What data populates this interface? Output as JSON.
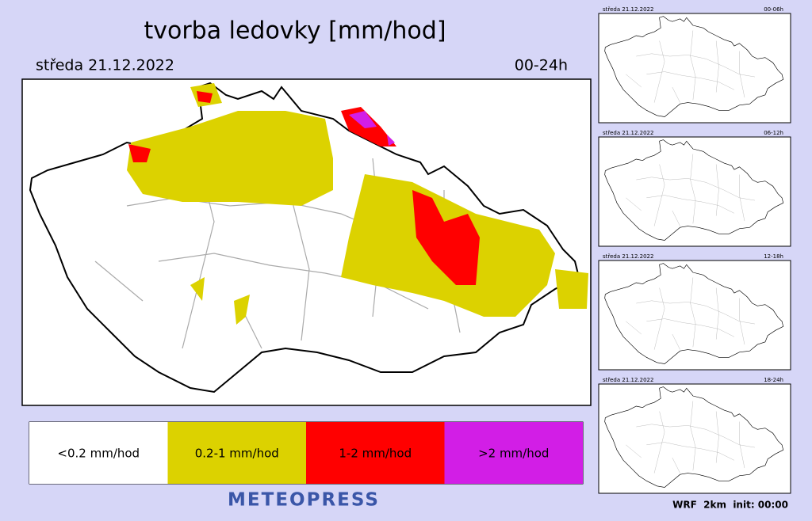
{
  "header": {
    "title": "tvorba ledovky [mm/hod]",
    "date": "středa 21.12.2022",
    "period": "00-24h"
  },
  "legend": [
    {
      "label": "<0.2 mm/hod",
      "color": "#ffffff"
    },
    {
      "label": "0.2-1 mm/hod",
      "color": "#dcd200"
    },
    {
      "label": "1-2 mm/hod",
      "color": "#ff0000"
    },
    {
      "label": ">2 mm/hod",
      "color": "#d21ee6"
    }
  ],
  "panels": [
    {
      "date": "středa 21.12.2022",
      "period": "00-06h"
    },
    {
      "date": "středa 21.12.2022",
      "period": "06-12h"
    },
    {
      "date": "středa 21.12.2022",
      "period": "12-18h"
    },
    {
      "date": "středa 21.12.2022",
      "period": "18-24h"
    }
  ],
  "footer": {
    "brand": "METEOPRESS",
    "model": "WRF  2km  init: 00:00"
  }
}
